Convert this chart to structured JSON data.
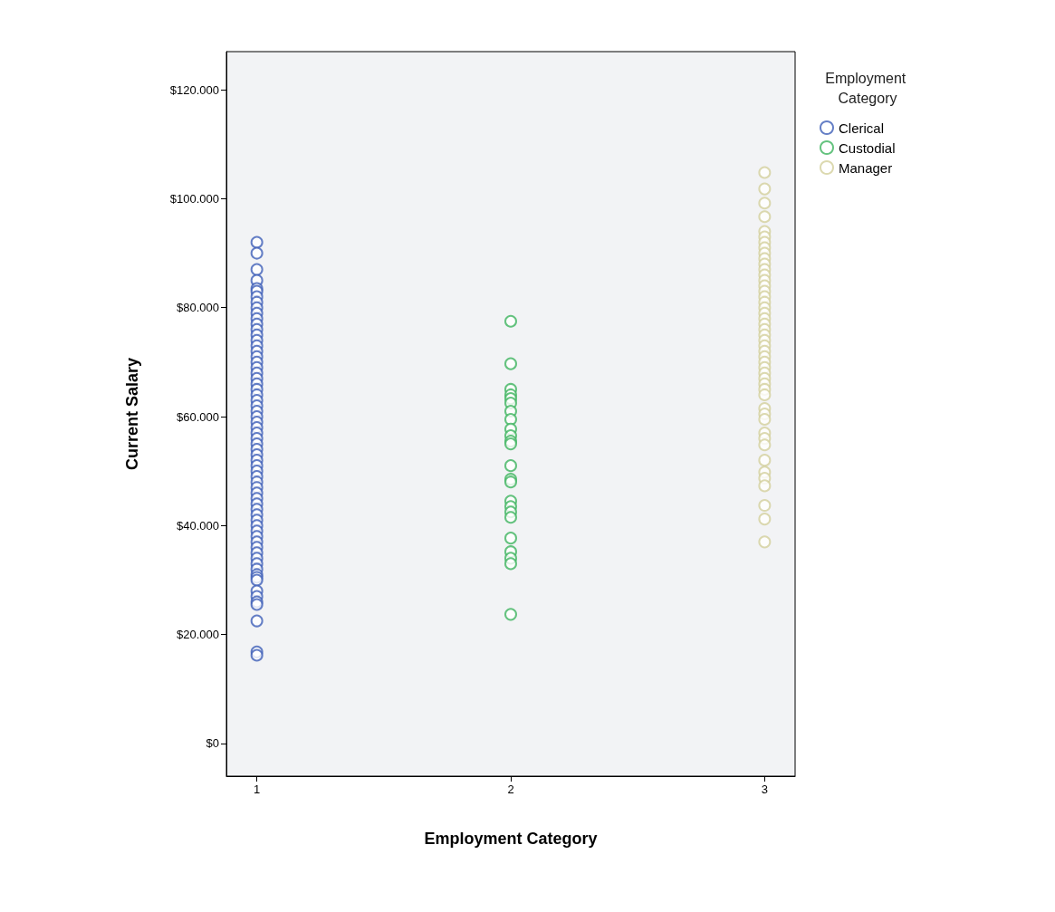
{
  "chart_data": {
    "type": "scatter",
    "xlabel": "Employment Category",
    "ylabel": "Current Salary",
    "legend_title": "Employment Category",
    "xlim": [
      0.88,
      3.12
    ],
    "xticks": [
      1,
      2,
      3
    ],
    "ylim": [
      -6000,
      127000
    ],
    "yticks": [
      {
        "value": 0,
        "label": "$0"
      },
      {
        "value": 20000,
        "label": "$20.000"
      },
      {
        "value": 40000,
        "label": "$40.000"
      },
      {
        "value": 60000,
        "label": "$60.000"
      },
      {
        "value": 80000,
        "label": "$80.000"
      },
      {
        "value": 100000,
        "label": "$100.000"
      },
      {
        "value": 120000,
        "label": "$120.000"
      }
    ],
    "grid": false,
    "legend": "top right",
    "marker": "circle",
    "series": [
      {
        "name": "Clerical",
        "color": "#3e5fb8",
        "x": [
          1,
          1,
          1,
          1,
          1,
          1,
          1,
          1,
          1,
          1,
          1,
          1,
          1,
          1,
          1,
          1,
          1,
          1,
          1,
          1,
          1,
          1,
          1,
          1,
          1,
          1,
          1,
          1,
          1,
          1,
          1,
          1,
          1,
          1,
          1,
          1,
          1,
          1,
          1,
          1,
          1,
          1,
          1,
          1,
          1,
          1,
          1,
          1,
          1,
          1,
          1,
          1,
          1,
          1,
          1,
          1,
          1,
          1,
          1,
          1,
          1,
          1,
          1,
          1,
          1,
          1,
          1
        ],
        "values": [
          92000,
          90000,
          87000,
          85000,
          83500,
          83000,
          82000,
          81000,
          80000,
          79000,
          78000,
          77000,
          76000,
          75000,
          74000,
          73000,
          72000,
          71000,
          70000,
          69000,
          68000,
          67000,
          66000,
          65000,
          64000,
          63000,
          62000,
          61000,
          60000,
          59000,
          58000,
          57000,
          56000,
          55000,
          54000,
          53000,
          52000,
          51000,
          50000,
          49000,
          48000,
          47000,
          46000,
          45000,
          44000,
          43000,
          42000,
          41000,
          40000,
          39000,
          38000,
          37000,
          36000,
          35000,
          34000,
          33000,
          32000,
          31000,
          30500,
          30000,
          28000,
          27000,
          26000,
          25500,
          22500,
          16800,
          16200
        ]
      },
      {
        "name": "Custodial",
        "color": "#3fb45f",
        "x": [
          2,
          2,
          2,
          2,
          2,
          2,
          2,
          2,
          2,
          2,
          2,
          2,
          2,
          2,
          2,
          2,
          2,
          2,
          2,
          2,
          2,
          2,
          2,
          2
        ],
        "values": [
          77500,
          69700,
          65000,
          64000,
          63300,
          62500,
          61000,
          59500,
          57700,
          56500,
          55500,
          55000,
          51000,
          48500,
          48000,
          44500,
          43500,
          42500,
          41500,
          37700,
          35200,
          34000,
          33000,
          23700
        ]
      },
      {
        "name": "Manager",
        "color": "#d3cf9c",
        "x": [
          3,
          3,
          3,
          3,
          3,
          3,
          3,
          3,
          3,
          3,
          3,
          3,
          3,
          3,
          3,
          3,
          3,
          3,
          3,
          3,
          3,
          3,
          3,
          3,
          3,
          3,
          3,
          3,
          3,
          3,
          3,
          3,
          3,
          3,
          3,
          3,
          3,
          3,
          3,
          3,
          3,
          3,
          3,
          3,
          3,
          3,
          3,
          3
        ],
        "values": [
          104800,
          101800,
          99200,
          96700,
          94000,
          93000,
          92000,
          91000,
          90000,
          89000,
          88000,
          87000,
          86000,
          85000,
          84000,
          83000,
          82000,
          81000,
          80000,
          79000,
          78000,
          77000,
          76000,
          75000,
          74000,
          73000,
          72000,
          71000,
          70000,
          69000,
          68000,
          67000,
          66000,
          65000,
          64000,
          61500,
          60500,
          59500,
          57000,
          56000,
          54800,
          52000,
          49800,
          48700,
          47300,
          43700,
          41200,
          37000
        ]
      }
    ]
  }
}
